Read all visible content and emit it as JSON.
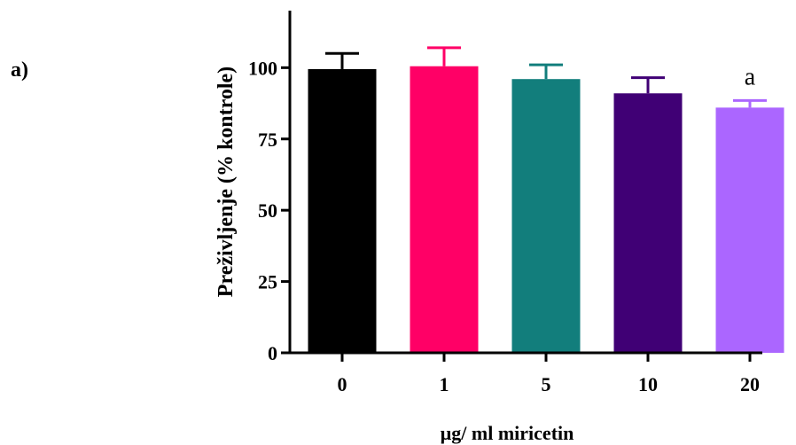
{
  "panel_label": "a)",
  "chart_data": {
    "type": "bar",
    "categories": [
      "0",
      "1",
      "5",
      "10",
      "20"
    ],
    "values": [
      99.5,
      100.5,
      96.0,
      91.0,
      86.0
    ],
    "errors": [
      5.5,
      6.5,
      5.0,
      5.5,
      2.5
    ],
    "colors": [
      "#000000",
      "#ff0066",
      "#127e7c",
      "#400075",
      "#ab66ff"
    ],
    "annotations": [
      {
        "category": "20",
        "text": "a"
      }
    ],
    "title": "",
    "xlabel": "µg/ ml miricetin",
    "ylabel": "Preživljenje (% kontrole)",
    "ylim": [
      0,
      120
    ],
    "yticks": [
      0,
      25,
      50,
      75,
      100
    ],
    "grid": false,
    "legend": "none"
  }
}
